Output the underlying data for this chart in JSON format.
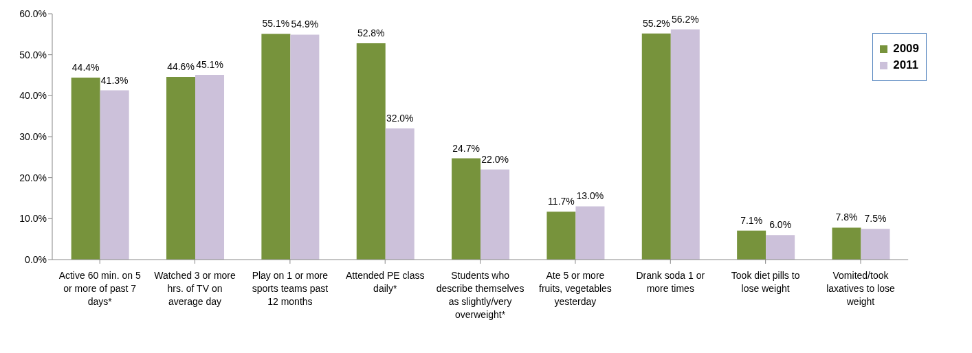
{
  "chart_data": {
    "type": "bar",
    "categories": [
      "Active 60 min. on 5 or more of past 7 days*",
      "Watched 3 or more hrs. of TV on average day",
      "Play on 1 or more sports teams past 12 months",
      "Attended PE class daily*",
      "Students who describe themselves as slightly/very overweight*",
      "Ate 5 or more fruits, vegetables yesterday",
      "Drank soda 1 or more times",
      "Took diet pills to lose weight",
      "Vomited/took laxatives to lose weight"
    ],
    "series": [
      {
        "name": "2009",
        "color": "#77933c",
        "values": [
          44.4,
          44.6,
          55.1,
          52.8,
          24.7,
          11.7,
          55.2,
          7.1,
          7.8
        ],
        "value_labels": [
          "44.4%",
          "44.6%",
          "55.1%",
          "52.8%",
          "24.7%",
          "11.7%",
          "55.2%",
          "7.1%",
          "7.8%"
        ]
      },
      {
        "name": "2011",
        "color": "#ccc1da",
        "values": [
          41.3,
          45.1,
          54.9,
          32.0,
          22.0,
          13.0,
          56.2,
          6.0,
          7.5
        ],
        "value_labels": [
          "41.3%",
          "45.1%",
          "54.9%",
          "32.0%",
          "22.0%",
          "13.0%",
          "56.2%",
          "6.0%",
          "7.5%"
        ]
      }
    ],
    "ylim": [
      0,
      60
    ],
    "yticks": [
      {
        "value": 0,
        "label": "0.0%"
      },
      {
        "value": 10,
        "label": "10.0%"
      },
      {
        "value": 20,
        "label": "20.0%"
      },
      {
        "value": 30,
        "label": "30.0%"
      },
      {
        "value": 40,
        "label": "40.0%"
      },
      {
        "value": 50,
        "label": "50.0%"
      },
      {
        "value": 60,
        "label": "60.0%"
      }
    ],
    "grid": false,
    "legend": "top right"
  }
}
